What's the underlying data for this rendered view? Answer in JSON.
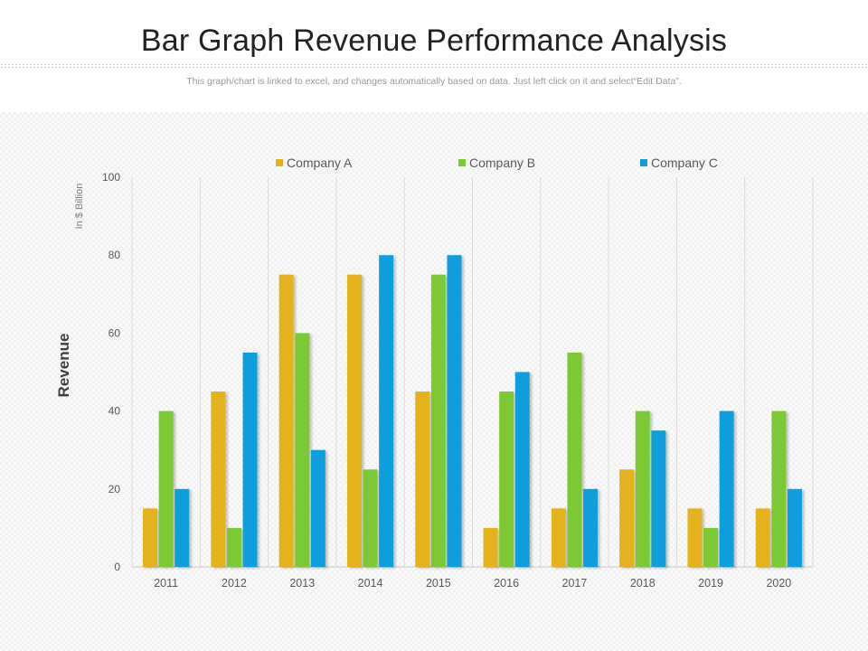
{
  "page": {
    "title": "Bar Graph Revenue Performance Analysis",
    "subtitle": "This graph/chart is linked to excel,  and changes automatically based on data. Just left click on it and select“Edit Data”."
  },
  "chart_data": {
    "type": "bar",
    "title": "",
    "xlabel": "",
    "ylabel": "Revenue",
    "y_unit_label": "In $ Billion",
    "ylim": [
      0,
      100
    ],
    "yticks": [
      0,
      20,
      40,
      60,
      80,
      100
    ],
    "grid": "vertical separators",
    "legend_position": "top",
    "categories": [
      "2011",
      "2012",
      "2013",
      "2014",
      "2015",
      "2016",
      "2017",
      "2018",
      "2019",
      "2020"
    ],
    "series": [
      {
        "name": "Company A",
        "color": "#E3B21A",
        "values": [
          15,
          45,
          75,
          75,
          45,
          10,
          15,
          25,
          15,
          15
        ]
      },
      {
        "name": "Company B",
        "color": "#7DC935",
        "values": [
          40,
          10,
          60,
          25,
          75,
          45,
          55,
          40,
          10,
          40
        ]
      },
      {
        "name": "Company C",
        "color": "#0E9EDB",
        "values": [
          20,
          55,
          30,
          80,
          80,
          50,
          20,
          35,
          40,
          20
        ]
      }
    ]
  }
}
